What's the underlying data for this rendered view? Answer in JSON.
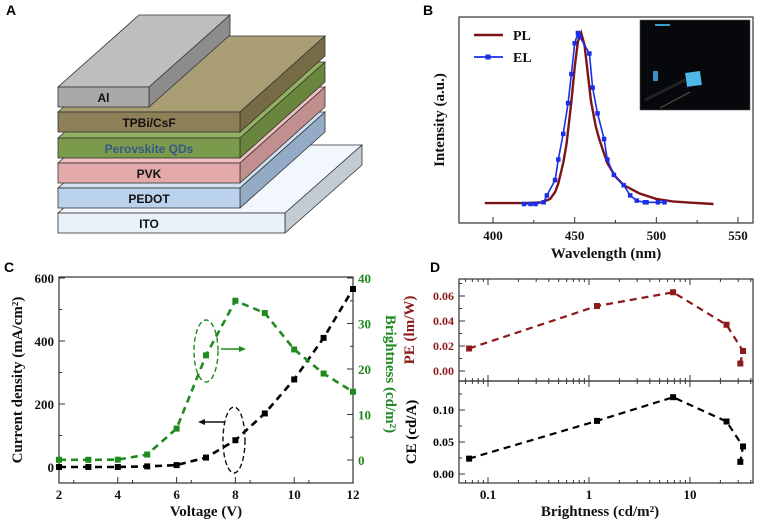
{
  "panels": {
    "a": "A",
    "b": "B",
    "c": "C",
    "d": "D"
  },
  "diagram": {
    "layers": [
      {
        "label": "Al",
        "front": "#a9a9a9",
        "top": "#bebebe",
        "side": "#8c8c8c",
        "text": "#111111"
      },
      {
        "label": "TPBi/CsF",
        "front": "#8d8058",
        "top": "#a99d73",
        "side": "#776b46",
        "text": "#111111"
      },
      {
        "label": "Perovskite QDs",
        "front": "#7b9a4b",
        "top": "#93b05f",
        "side": "#68863d",
        "text": "#34598a"
      },
      {
        "label": "PVK",
        "front": "#e3aaa9",
        "top": "#efc0bf",
        "side": "#c18f8e",
        "text": "#111111"
      },
      {
        "label": "PEDOT",
        "front": "#bad2ec",
        "top": "#cfe0f3",
        "side": "#93abc4",
        "text": "#111111"
      },
      {
        "label": "ITO",
        "front": "#e9f1fb",
        "top": "#f2f7fd",
        "side": "#c3cbd3",
        "text": "#111111"
      }
    ]
  },
  "chart_data": [
    {
      "type": "line",
      "title": "",
      "xlabel": "Wavelength (nm)",
      "ylabel": "Intensity (a.u.)",
      "xlim": [
        380,
        560
      ],
      "ylim": [
        -0.11,
        1.09
      ],
      "xticks": [
        400,
        450,
        500,
        550
      ],
      "legend_position": "top-left",
      "inset": "photo of blue-emitting device",
      "series": [
        {
          "name": "PL",
          "color": "#7b1416",
          "marker": "none",
          "x": [
            395,
            420,
            430,
            435,
            438,
            440,
            443,
            445,
            448,
            450,
            452,
            454,
            456,
            457,
            460,
            463,
            465,
            470,
            475,
            480,
            490,
            500,
            510,
            520,
            535
          ],
          "y": [
            0.005,
            0.005,
            0.01,
            0.03,
            0.07,
            0.12,
            0.24,
            0.35,
            0.6,
            0.8,
            0.95,
            1.0,
            0.93,
            0.85,
            0.6,
            0.45,
            0.38,
            0.24,
            0.16,
            0.11,
            0.06,
            0.03,
            0.015,
            0.008,
            0.0
          ]
        },
        {
          "name": "EL",
          "color": "#1a2ee8",
          "marker": "square",
          "x": [
            419,
            423,
            426,
            431,
            433,
            438,
            440,
            443,
            446,
            448,
            450,
            452,
            453,
            459,
            461,
            464,
            468,
            470,
            474,
            480,
            484,
            488,
            493,
            494,
            501,
            505
          ],
          "y": [
            0,
            0,
            0,
            0.01,
            0.05,
            0.14,
            0.26,
            0.41,
            0.59,
            0.76,
            0.94,
            1.0,
            0.98,
            0.88,
            0.68,
            0.53,
            0.38,
            0.26,
            0.17,
            0.11,
            0.05,
            0.02,
            0.01,
            0.01,
            0.01,
            0.01
          ]
        }
      ]
    },
    {
      "type": "line",
      "title": "",
      "xlabel": "Voltage (V)",
      "ylabel": "Current density (mA/cm²)",
      "y2label": "Brightness (cd/m²)",
      "xlim": [
        2,
        12
      ],
      "ylim": [
        -50,
        600
      ],
      "y2lim": [
        -5,
        40
      ],
      "xticks": [
        2,
        4,
        6,
        8,
        10,
        12
      ],
      "yticks": [
        0,
        200,
        400,
        600
      ],
      "y2ticks": [
        0,
        10,
        20,
        30,
        40
      ],
      "series": [
        {
          "name": "Current density",
          "axis": "left",
          "color": "#000000",
          "x": [
            2,
            3,
            4,
            5,
            6,
            7,
            8,
            9,
            10,
            11,
            12
          ],
          "y": [
            0,
            0,
            0,
            2,
            6,
            30,
            85,
            170,
            278,
            410,
            565
          ]
        },
        {
          "name": "Brightness",
          "axis": "right",
          "color": "#1f8a1f",
          "x": [
            2,
            3,
            4,
            5,
            6,
            7,
            8,
            9,
            10,
            11,
            12
          ],
          "y": [
            0.05,
            0.05,
            0.07,
            1.2,
            6.9,
            23,
            35,
            32.3,
            24.3,
            19,
            15
          ]
        }
      ]
    },
    {
      "type": "line",
      "title": "",
      "xlabel": "Brightness (cd/m²)",
      "xscale": "log",
      "xlim": [
        0.05,
        40
      ],
      "xticks": [
        0.1,
        1,
        10
      ],
      "xtick_labels": [
        "0.1",
        "1",
        "10"
      ],
      "panels": [
        {
          "ylabel": "PE (lm/W)",
          "color": "#8b1a1a",
          "ylim": [
            -0.013,
            0.074
          ],
          "yticks": [
            "0.00",
            "0.02",
            "0.04",
            "0.06"
          ],
          "x": [
            0.065,
            1.2,
            6.8,
            23,
            33.5,
            31.5
          ],
          "y": [
            0.018,
            0.052,
            0.063,
            0.037,
            0.016,
            0.006
          ]
        },
        {
          "ylabel": "CE (cd/A)",
          "color": "#000000",
          "ylim": [
            -0.014,
            0.14
          ],
          "yticks": [
            "0.00",
            "0.05",
            "0.10"
          ],
          "x": [
            0.065,
            1.2,
            6.8,
            23,
            33.5,
            31.5
          ],
          "y": [
            0.024,
            0.083,
            0.12,
            0.082,
            0.043,
            0.019
          ]
        }
      ]
    }
  ]
}
